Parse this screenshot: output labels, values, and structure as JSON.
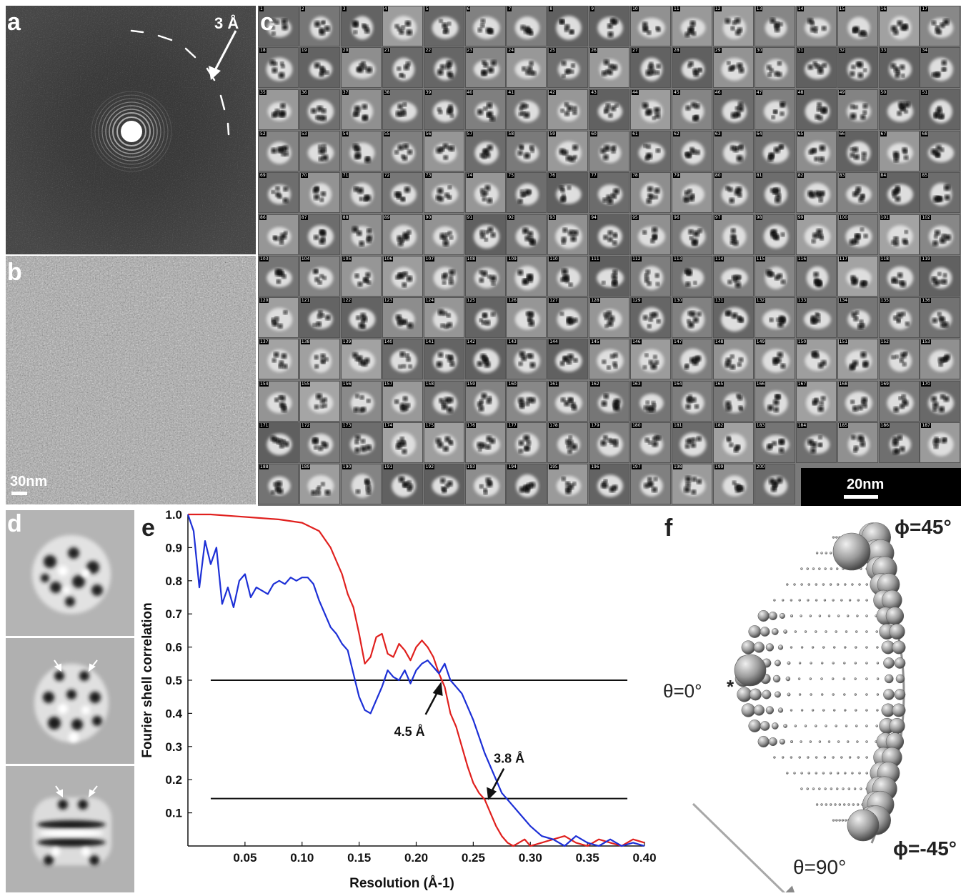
{
  "figure": {
    "panel_letters": {
      "a": "a",
      "b": "b",
      "c": "c",
      "d": "d",
      "e": "e",
      "f": "f"
    },
    "panel_a": {
      "ring_label": "3 Å"
    },
    "panel_b": {
      "scalebar_label": "30nm"
    },
    "panel_c": {
      "scalebar_label": "20nm",
      "class_count": 200
    },
    "panel_f": {
      "labels": {
        "phi_top": "ϕ=45°",
        "phi_bottom": "ϕ=-45°",
        "theta_0": "θ=0°",
        "theta_90": "θ=90°",
        "asterisk": "*"
      }
    }
  },
  "chart_data": {
    "type": "line",
    "xlabel": "Resolution (Å-1)",
    "ylabel": "Fourier shell correlation",
    "xlim": [
      0,
      0.4
    ],
    "ylim": [
      0,
      1.0
    ],
    "xticks": [
      "0.05",
      "0.10",
      "0.15",
      "0.20",
      "0.25",
      "0.30",
      "0.35",
      "0.40"
    ],
    "xtick_values": [
      0.05,
      0.1,
      0.15,
      0.2,
      0.25,
      0.3,
      0.35,
      0.4
    ],
    "yticks": [
      "0.1",
      "0.2",
      "0.3",
      "0.4",
      "0.5",
      "0.6",
      "0.7",
      "0.8",
      "0.9",
      "1.0"
    ],
    "ytick_values": [
      0.1,
      0.2,
      0.3,
      0.4,
      0.5,
      0.6,
      0.7,
      0.8,
      0.9,
      1.0
    ],
    "thresholds": [
      0.5,
      0.143
    ],
    "annotations": [
      {
        "text": "4.5 Å",
        "x": 0.222,
        "y": 0.5
      },
      {
        "text": "3.8 Å",
        "x": 0.263,
        "y": 0.143
      }
    ],
    "series": [
      {
        "color": "#e0201e",
        "x": [
          0.0,
          0.02,
          0.04,
          0.06,
          0.08,
          0.1,
          0.115,
          0.125,
          0.13,
          0.135,
          0.14,
          0.145,
          0.15,
          0.155,
          0.16,
          0.165,
          0.17,
          0.175,
          0.18,
          0.185,
          0.19,
          0.195,
          0.2,
          0.205,
          0.21,
          0.215,
          0.22,
          0.225,
          0.23,
          0.235,
          0.24,
          0.245,
          0.25,
          0.255,
          0.26,
          0.265,
          0.27,
          0.275,
          0.28,
          0.285,
          0.29,
          0.295,
          0.3,
          0.31,
          0.32,
          0.33,
          0.34,
          0.35,
          0.36,
          0.37,
          0.38,
          0.39,
          0.4
        ],
        "y": [
          1.0,
          1.0,
          0.995,
          0.99,
          0.985,
          0.975,
          0.95,
          0.9,
          0.86,
          0.82,
          0.76,
          0.72,
          0.64,
          0.55,
          0.57,
          0.63,
          0.64,
          0.58,
          0.57,
          0.61,
          0.59,
          0.56,
          0.6,
          0.62,
          0.6,
          0.57,
          0.52,
          0.48,
          0.4,
          0.36,
          0.3,
          0.24,
          0.19,
          0.16,
          0.14,
          0.1,
          0.06,
          0.03,
          0.01,
          0.0,
          0.01,
          0.02,
          0.0,
          0.01,
          0.02,
          0.03,
          0.01,
          0.0,
          0.02,
          0.01,
          0.0,
          0.02,
          0.01
        ]
      },
      {
        "color": "#1c2fd6",
        "x": [
          0.0,
          0.005,
          0.01,
          0.015,
          0.02,
          0.025,
          0.03,
          0.035,
          0.04,
          0.045,
          0.05,
          0.055,
          0.06,
          0.065,
          0.07,
          0.075,
          0.08,
          0.085,
          0.09,
          0.095,
          0.1,
          0.105,
          0.11,
          0.115,
          0.12,
          0.125,
          0.13,
          0.135,
          0.14,
          0.145,
          0.15,
          0.155,
          0.16,
          0.165,
          0.17,
          0.175,
          0.18,
          0.185,
          0.19,
          0.195,
          0.2,
          0.205,
          0.21,
          0.215,
          0.22,
          0.225,
          0.23,
          0.235,
          0.24,
          0.245,
          0.25,
          0.255,
          0.26,
          0.265,
          0.27,
          0.275,
          0.28,
          0.285,
          0.29,
          0.295,
          0.3,
          0.31,
          0.32,
          0.33,
          0.34,
          0.35,
          0.36,
          0.37,
          0.38,
          0.39,
          0.4
        ],
        "y": [
          1.0,
          0.95,
          0.78,
          0.92,
          0.85,
          0.9,
          0.73,
          0.78,
          0.72,
          0.8,
          0.82,
          0.75,
          0.78,
          0.77,
          0.76,
          0.79,
          0.8,
          0.79,
          0.81,
          0.8,
          0.81,
          0.81,
          0.79,
          0.74,
          0.7,
          0.66,
          0.64,
          0.61,
          0.59,
          0.52,
          0.45,
          0.41,
          0.4,
          0.44,
          0.48,
          0.53,
          0.51,
          0.5,
          0.53,
          0.49,
          0.53,
          0.55,
          0.56,
          0.54,
          0.52,
          0.55,
          0.5,
          0.48,
          0.46,
          0.42,
          0.38,
          0.33,
          0.28,
          0.24,
          0.2,
          0.16,
          0.14,
          0.12,
          0.1,
          0.08,
          0.06,
          0.03,
          0.02,
          0.0,
          0.03,
          0.01,
          0.0,
          0.02,
          0.0,
          0.01,
          0.0
        ]
      }
    ]
  }
}
